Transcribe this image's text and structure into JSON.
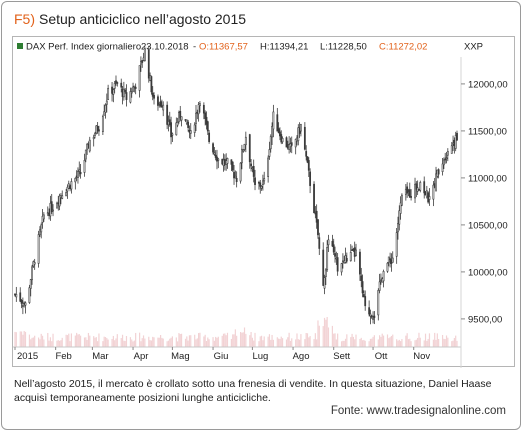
{
  "figure": {
    "code": "F5)",
    "title": "Setup anticiclico nell’agosto 2015",
    "caption": "Nell’agosto 2015, il mercato è crollato sotto una frenesia di vendite. In questa situazione, Daniel Haase acquisì temporaneamente posizioni lunghe anticicliche.",
    "source": "Fonte: www.tradesignalonline.com"
  },
  "chart_data": {
    "type": "candlestick",
    "header": {
      "instrument": "DAX Perf. Index giornaliero",
      "date": "23.10.2018",
      "open": "O:11367,57",
      "high": "H:11394,21",
      "low": "L:11228,50",
      "close": "C:11272,02"
    },
    "exchange_label": "XXP",
    "x_tick_labels": [
      "2015",
      "Feb",
      "Mar",
      "Apr",
      "Mag",
      "Giu",
      "Lug",
      "Ago",
      "Sett",
      "Ott",
      "Nov"
    ],
    "y_tick_labels": [
      "12000,00",
      "11500,00",
      "11000,00",
      "10500,00",
      "10000,00",
      "9500,00"
    ],
    "y_ticks": [
      12000,
      11500,
      11000,
      10500,
      10000,
      9500
    ],
    "ylim": [
      9350,
      12350
    ],
    "grid": false,
    "approx_close_path": [
      {
        "x": "2015-01-02",
        "y": 9760
      },
      {
        "x": "2015-01-09",
        "y": 9650
      },
      {
        "x": "2015-01-16",
        "y": 10150
      },
      {
        "x": "2015-01-23",
        "y": 10600
      },
      {
        "x": "2015-01-30",
        "y": 10700
      },
      {
        "x": "2015-02-06",
        "y": 10850
      },
      {
        "x": "2015-02-13",
        "y": 10950
      },
      {
        "x": "2015-02-20",
        "y": 11050
      },
      {
        "x": "2015-02-27",
        "y": 11400
      },
      {
        "x": "2015-03-06",
        "y": 11550
      },
      {
        "x": "2015-03-13",
        "y": 11900
      },
      {
        "x": "2015-03-20",
        "y": 12000
      },
      {
        "x": "2015-03-27",
        "y": 11850
      },
      {
        "x": "2015-04-03",
        "y": 12000
      },
      {
        "x": "2015-04-10",
        "y": 12350
      },
      {
        "x": "2015-04-17",
        "y": 11800
      },
      {
        "x": "2015-04-24",
        "y": 11800
      },
      {
        "x": "2015-04-30",
        "y": 11450
      },
      {
        "x": "2015-05-08",
        "y": 11700
      },
      {
        "x": "2015-05-15",
        "y": 11450
      },
      {
        "x": "2015-05-22",
        "y": 11850
      },
      {
        "x": "2015-05-29",
        "y": 11400
      },
      {
        "x": "2015-06-05",
        "y": 11200
      },
      {
        "x": "2015-06-12",
        "y": 11150
      },
      {
        "x": "2015-06-19",
        "y": 11000
      },
      {
        "x": "2015-06-26",
        "y": 11450
      },
      {
        "x": "2015-07-03",
        "y": 10900
      },
      {
        "x": "2015-07-10",
        "y": 10950
      },
      {
        "x": "2015-07-17",
        "y": 11650
      },
      {
        "x": "2015-07-24",
        "y": 11400
      },
      {
        "x": "2015-07-31",
        "y": 11300
      },
      {
        "x": "2015-08-07",
        "y": 11550
      },
      {
        "x": "2015-08-14",
        "y": 10950
      },
      {
        "x": "2015-08-21",
        "y": 10300
      },
      {
        "x": "2015-08-24",
        "y": 9800
      },
      {
        "x": "2015-08-28",
        "y": 10350
      },
      {
        "x": "2015-09-04",
        "y": 10050
      },
      {
        "x": "2015-09-11",
        "y": 10150
      },
      {
        "x": "2015-09-18",
        "y": 10200
      },
      {
        "x": "2015-09-25",
        "y": 9600
      },
      {
        "x": "2015-10-02",
        "y": 9550
      },
      {
        "x": "2015-10-09",
        "y": 10050
      },
      {
        "x": "2015-10-16",
        "y": 10150
      },
      {
        "x": "2015-10-23",
        "y": 10800
      },
      {
        "x": "2015-10-30",
        "y": 10850
      },
      {
        "x": "2015-11-06",
        "y": 10950
      },
      {
        "x": "2015-11-13",
        "y": 10750
      },
      {
        "x": "2015-11-20",
        "y": 11100
      },
      {
        "x": "2015-11-27",
        "y": 11300
      },
      {
        "x": "2015-12-02",
        "y": 11400
      }
    ]
  }
}
